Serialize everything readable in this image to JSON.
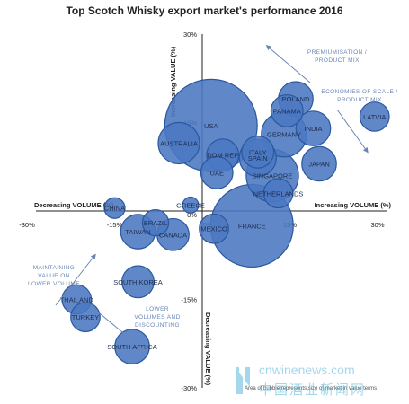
{
  "chart_data": {
    "type": "bubble",
    "title": "Top Scotch Whisky export market's performance 2016",
    "xlabel_left": "Decreasing VOLUME (%)",
    "xlabel_right": "Increasing VOLUME (%)",
    "ylabel_top": "Increasing VALUE (%)",
    "ylabel_bottom": "Decreasing VALUE (%)",
    "xlim": [
      -30,
      30
    ],
    "ylim": [
      -30,
      30
    ],
    "x_ticks": [
      "-30%",
      "-15%",
      "0%",
      "15%",
      "30%"
    ],
    "y_ticks": [
      "30%",
      "15%",
      "0%",
      "-15%",
      "-30%"
    ],
    "bubble_color": "#4a78c2",
    "bubble_edge": "#2a579e",
    "arrow_color": "#6a86b5",
    "points": [
      {
        "label": "USA",
        "x": 1.5,
        "y": 14.5,
        "size": 5.0
      },
      {
        "label": "FRANCE",
        "x": 8.5,
        "y": -2.5,
        "size": 4.0
      },
      {
        "label": "SINGAPORE",
        "x": 12,
        "y": 6,
        "size": 1.6
      },
      {
        "label": "GERMANY",
        "x": 14,
        "y": 13,
        "size": 1.2
      },
      {
        "label": "AUSTRALIA",
        "x": -4,
        "y": 11.5,
        "size": 1.0
      },
      {
        "label": "INDIA",
        "x": 19,
        "y": 14,
        "size": 0.7
      },
      {
        "label": "POLAND",
        "x": 16,
        "y": 19,
        "size": 0.7
      },
      {
        "label": "PANAMA",
        "x": 14.5,
        "y": 17,
        "size": 0.6
      },
      {
        "label": "LATVIA",
        "x": 29.5,
        "y": 16,
        "size": 0.5
      },
      {
        "label": "JAPAN",
        "x": 20,
        "y": 8,
        "size": 0.7
      },
      {
        "label": "ITALY",
        "x": 9.5,
        "y": 10,
        "size": 0.6
      },
      {
        "label": "SPAIN",
        "x": 9.5,
        "y": 9,
        "size": 0.8
      },
      {
        "label": "DOM REP",
        "x": 3.5,
        "y": 9.5,
        "size": 0.6
      },
      {
        "label": "UAE",
        "x": 2.5,
        "y": 6.5,
        "size": 0.6
      },
      {
        "label": "NETHERLANDS",
        "x": 13,
        "y": 3,
        "size": 0.5
      },
      {
        "label": "GREECE",
        "x": -2,
        "y": 1,
        "size": 0.15
      },
      {
        "label": "CHINA",
        "x": -15,
        "y": 0.5,
        "size": 0.25
      },
      {
        "label": "BRAZIL",
        "x": -8,
        "y": -2,
        "size": 0.4
      },
      {
        "label": "TAIWAN",
        "x": -11,
        "y": -3.5,
        "size": 0.7
      },
      {
        "label": "CANADA",
        "x": -5,
        "y": -4,
        "size": 0.6
      },
      {
        "label": "MEXICO",
        "x": 2,
        "y": -3,
        "size": 0.5
      },
      {
        "label": "SOUTH KOREA",
        "x": -11,
        "y": -12,
        "size": 0.6
      },
      {
        "label": "THAILAND",
        "x": -21.5,
        "y": -15,
        "size": 0.5
      },
      {
        "label": "TURKEY",
        "x": -20,
        "y": -18,
        "size": 0.5
      },
      {
        "label": "SOUTH AFRICA",
        "x": -12,
        "y": -23,
        "size": 0.7
      }
    ],
    "annotations": {
      "premiumisation": [
        "Premiumisation /",
        "product mix"
      ],
      "economies": [
        "Economies of scale /",
        "product mix"
      ],
      "maintaining": [
        "Maintaining",
        "value on",
        "lower volume"
      ],
      "lower": [
        "Lower",
        "volumes and",
        "discounting"
      ]
    },
    "footnote": "Area of bubble represents size of market in value terms"
  },
  "watermark": {
    "url": "cnwinenews.com",
    "cn": "中国酒业新闻网"
  }
}
